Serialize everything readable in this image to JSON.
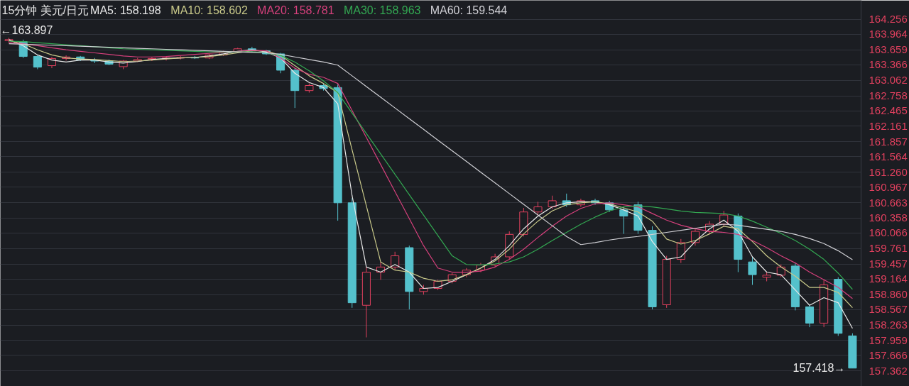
{
  "chart_data": {
    "type": "candlestick",
    "title": "15分钟  美元/日元",
    "categories": [
      null,
      null,
      null,
      null,
      null,
      null,
      null,
      null,
      null,
      null,
      null,
      null,
      null,
      null,
      null,
      null,
      null,
      null,
      null,
      null,
      null,
      null,
      null,
      null,
      null,
      null,
      null,
      null,
      null,
      null,
      null,
      null,
      null,
      null,
      null,
      null,
      null,
      null,
      null,
      null,
      null,
      null,
      null,
      null,
      null,
      null,
      null,
      null,
      null,
      null,
      null,
      null,
      null,
      null,
      null,
      null,
      null,
      null,
      null,
      null
    ],
    "ohlc": [
      [
        163.84,
        163.897,
        163.8,
        163.86
      ],
      [
        163.82,
        163.86,
        163.5,
        163.53
      ],
      [
        163.53,
        163.56,
        163.28,
        163.32
      ],
      [
        163.35,
        163.52,
        163.3,
        163.49
      ],
      [
        163.49,
        163.55,
        163.45,
        163.52
      ],
      [
        163.52,
        163.54,
        163.44,
        163.46
      ],
      [
        163.46,
        163.5,
        163.4,
        163.44
      ],
      [
        163.44,
        163.47,
        163.36,
        163.38
      ],
      [
        163.33,
        163.46,
        163.28,
        163.44
      ],
      [
        163.44,
        163.5,
        163.42,
        163.47
      ],
      [
        163.47,
        163.52,
        163.44,
        163.49
      ],
      [
        163.49,
        163.53,
        163.45,
        163.5
      ],
      [
        163.5,
        163.54,
        163.47,
        163.51
      ],
      [
        163.51,
        163.54,
        163.48,
        163.5
      ],
      [
        163.5,
        163.58,
        163.48,
        163.56
      ],
      [
        163.56,
        163.64,
        163.54,
        163.62
      ],
      [
        163.62,
        163.7,
        163.6,
        163.68
      ],
      [
        163.68,
        163.72,
        163.62,
        163.64
      ],
      [
        163.64,
        163.66,
        163.56,
        163.58
      ],
      [
        163.58,
        163.6,
        163.2,
        163.26
      ],
      [
        163.26,
        163.3,
        162.52,
        162.86
      ],
      [
        162.86,
        163.0,
        162.82,
        162.96
      ],
      [
        162.96,
        163.0,
        162.86,
        162.9
      ],
      [
        162.92,
        162.98,
        160.31,
        160.66
      ],
      [
        160.66,
        160.75,
        158.6,
        158.7
      ],
      [
        158.65,
        159.4,
        158.02,
        159.3
      ],
      [
        159.3,
        159.5,
        159.15,
        159.4
      ],
      [
        159.4,
        159.7,
        159.35,
        159.62
      ],
      [
        159.78,
        159.82,
        158.57,
        158.92
      ],
      [
        158.92,
        159.05,
        158.86,
        158.98
      ],
      [
        158.98,
        159.15,
        158.95,
        159.12
      ],
      [
        159.12,
        159.28,
        159.08,
        159.25
      ],
      [
        159.25,
        159.38,
        159.2,
        159.34
      ],
      [
        159.34,
        159.48,
        159.3,
        159.44
      ],
      [
        159.44,
        159.66,
        159.4,
        159.6
      ],
      [
        159.6,
        160.1,
        159.55,
        160.04
      ],
      [
        160.04,
        160.56,
        160.0,
        160.48
      ],
      [
        160.48,
        160.68,
        160.4,
        160.58
      ],
      [
        160.58,
        160.8,
        160.54,
        160.7
      ],
      [
        160.7,
        160.84,
        160.58,
        160.62
      ],
      [
        160.62,
        160.74,
        160.58,
        160.7
      ],
      [
        160.7,
        160.74,
        160.62,
        160.66
      ],
      [
        160.66,
        160.7,
        160.48,
        160.52
      ],
      [
        160.52,
        160.58,
        160.05,
        160.4
      ],
      [
        160.62,
        160.68,
        160.05,
        160.12
      ],
      [
        160.12,
        160.2,
        158.57,
        158.62
      ],
      [
        158.66,
        159.62,
        158.6,
        159.55
      ],
      [
        159.55,
        159.95,
        159.48,
        159.88
      ],
      [
        159.88,
        160.15,
        159.82,
        160.1
      ],
      [
        160.1,
        160.3,
        160.04,
        160.24
      ],
      [
        160.24,
        160.5,
        160.2,
        160.42
      ],
      [
        160.4,
        160.45,
        159.3,
        159.55
      ],
      [
        159.5,
        159.6,
        159.05,
        159.25
      ],
      [
        159.2,
        159.3,
        159.12,
        159.24
      ],
      [
        159.24,
        159.45,
        159.2,
        159.4
      ],
      [
        159.42,
        159.48,
        158.55,
        158.62
      ],
      [
        158.62,
        158.66,
        158.22,
        158.3
      ],
      [
        158.3,
        159.15,
        158.22,
        159.05
      ],
      [
        159.16,
        159.2,
        158.05,
        158.1
      ],
      [
        158.05,
        158.1,
        157.418,
        157.418
      ]
    ],
    "colors": [
      "#e0405e",
      "#54c1cc",
      "#54c1cc",
      "#e0405e",
      "#e0405e",
      "#54c1cc",
      "#54c1cc",
      "#54c1cc",
      "#e0405e",
      "#e0405e",
      "#e0405e",
      "#e0405e",
      "#e0405e",
      "#54c1cc",
      "#e0405e",
      "#e0405e",
      "#e0405e",
      "#54c1cc",
      "#54c1cc",
      "#54c1cc",
      "#54c1cc",
      "#e0405e",
      "#54c1cc",
      "#54c1cc",
      "#54c1cc",
      "#e0405e",
      "#e0405e",
      "#e0405e",
      "#54c1cc",
      "#e0405e",
      "#e0405e",
      "#e0405e",
      "#e0405e",
      "#e0405e",
      "#e0405e",
      "#e0405e",
      "#e0405e",
      "#e0405e",
      "#e0405e",
      "#54c1cc",
      "#e0405e",
      "#54c1cc",
      "#54c1cc",
      "#54c1cc",
      "#54c1cc",
      "#54c1cc",
      "#e0405e",
      "#e0405e",
      "#e0405e",
      "#e0405e",
      "#e0405e",
      "#54c1cc",
      "#54c1cc",
      "#e0405e",
      "#e0405e",
      "#54c1cc",
      "#54c1cc",
      "#e0405e",
      "#54c1cc",
      "#54c1cc"
    ],
    "series": [
      {
        "name": "MA5: 158.198",
        "type": "line",
        "color": "#e8e8e8",
        "values": [
          163.86,
          163.74,
          163.56,
          163.46,
          163.42,
          163.46,
          163.46,
          163.42,
          163.4,
          163.43,
          163.47,
          163.49,
          163.5,
          163.51,
          163.54,
          163.58,
          163.63,
          163.66,
          163.62,
          163.5,
          163.2,
          163.02,
          162.92,
          162.6,
          160.8,
          159.4,
          159.3,
          159.45,
          159.3,
          158.98,
          159.0,
          159.12,
          159.25,
          159.38,
          159.55,
          159.82,
          160.15,
          160.4,
          160.58,
          160.66,
          160.68,
          160.68,
          160.62,
          160.52,
          160.4,
          159.9,
          159.55,
          159.6,
          159.9,
          160.15,
          160.32,
          160.1,
          159.6,
          159.3,
          159.25,
          158.95,
          158.65,
          158.8,
          158.7,
          158.198
        ]
      },
      {
        "name": "MA10: 158.602",
        "type": "line",
        "color": "#c9c98a",
        "values": [
          163.84,
          163.78,
          163.66,
          163.56,
          163.5,
          163.48,
          163.47,
          163.45,
          163.43,
          163.44,
          163.46,
          163.48,
          163.5,
          163.51,
          163.53,
          163.56,
          163.6,
          163.64,
          163.64,
          163.55,
          163.35,
          163.15,
          163.0,
          162.82,
          161.7,
          160.6,
          159.5,
          159.34,
          159.3,
          159.18,
          159.12,
          159.15,
          159.25,
          159.38,
          159.52,
          159.75,
          160.05,
          160.3,
          160.5,
          160.62,
          160.66,
          160.68,
          160.64,
          160.56,
          160.48,
          160.3,
          159.95,
          159.85,
          159.92,
          160.05,
          160.2,
          160.15,
          159.9,
          159.62,
          159.4,
          159.22,
          159.0,
          159.0,
          158.9,
          158.602
        ]
      },
      {
        "name": "MA20: 158.781",
        "type": "line",
        "color": "#d6407c",
        "values": [
          163.8,
          163.78,
          163.74,
          163.7,
          163.66,
          163.63,
          163.6,
          163.57,
          163.54,
          163.52,
          163.52,
          163.53,
          163.55,
          163.57,
          163.59,
          163.61,
          163.63,
          163.65,
          163.64,
          163.5,
          163.3,
          163.18,
          163.12,
          163.0,
          162.47,
          161.94,
          161.41,
          160.88,
          160.35,
          159.82,
          159.38,
          159.3,
          159.3,
          159.32,
          159.4,
          159.55,
          159.75,
          159.98,
          160.2,
          160.4,
          160.55,
          160.64,
          160.66,
          160.62,
          160.58,
          160.45,
          160.32,
          160.22,
          160.15,
          160.1,
          160.08,
          160.04,
          159.92,
          159.78,
          159.62,
          159.48,
          159.3,
          159.15,
          159.0,
          158.781
        ]
      },
      {
        "name": "MA30: 158.963",
        "type": "line",
        "color": "#33a852",
        "values": [
          163.83,
          163.82,
          163.8,
          163.78,
          163.76,
          163.74,
          163.72,
          163.7,
          163.68,
          163.67,
          163.66,
          163.65,
          163.64,
          163.63,
          163.62,
          163.62,
          163.62,
          163.62,
          163.6,
          163.55,
          163.42,
          163.25,
          163.05,
          162.82,
          162.42,
          162.02,
          161.62,
          161.22,
          160.82,
          160.42,
          160.02,
          159.62,
          159.45,
          159.44,
          159.46,
          159.5,
          159.6,
          159.75,
          159.92,
          160.08,
          160.24,
          160.38,
          160.5,
          160.58,
          160.6,
          160.58,
          160.54,
          160.5,
          160.47,
          160.46,
          160.45,
          160.4,
          160.3,
          160.18,
          160.06,
          159.92,
          159.75,
          159.55,
          159.28,
          158.963
        ]
      },
      {
        "name": "MA60: 159.544",
        "type": "line",
        "color": "#cfcfd4",
        "values": [
          163.78,
          163.77,
          163.76,
          163.75,
          163.74,
          163.73,
          163.72,
          163.71,
          163.7,
          163.69,
          163.68,
          163.67,
          163.66,
          163.65,
          163.64,
          163.63,
          163.62,
          163.61,
          163.6,
          163.57,
          163.52,
          163.47,
          163.42,
          163.36,
          163.15,
          162.94,
          162.73,
          162.52,
          162.31,
          162.1,
          161.89,
          161.68,
          161.47,
          161.26,
          161.05,
          160.84,
          160.63,
          160.42,
          160.21,
          160.0,
          159.84,
          159.88,
          159.93,
          159.97,
          160.0,
          160.04,
          160.08,
          160.12,
          160.16,
          160.2,
          160.24,
          160.22,
          160.18,
          160.14,
          160.1,
          160.04,
          159.96,
          159.86,
          159.72,
          159.544
        ]
      }
    ],
    "annotations": [
      "←163.897",
      "157.418→"
    ],
    "ylim": [
      157.06,
      164.63
    ],
    "yticks": [
      157.362,
      157.666,
      157.959,
      158.263,
      158.567,
      {
        "value": 158.86,
        "label": "158.860"
      },
      159.164,
      159.457,
      159.761,
      160.066,
      160.358,
      160.663,
      160.967,
      {
        "value": 161.26,
        "label": "161.260"
      },
      161.564,
      161.857,
      162.161,
      162.465,
      162.758,
      163.062,
      163.366,
      163.659,
      163.964,
      164.256
    ],
    "grid": "y",
    "tick_labels": "y"
  }
}
